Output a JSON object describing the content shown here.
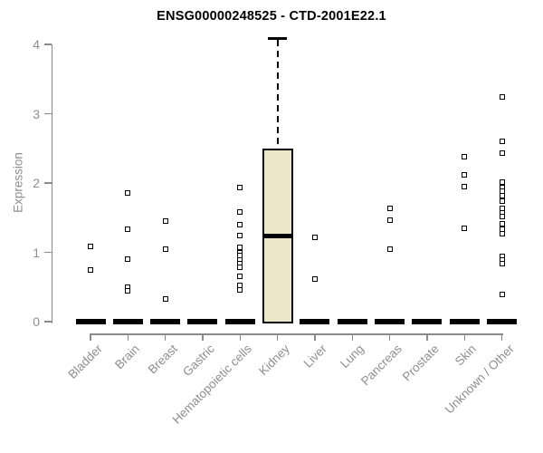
{
  "chart_data": {
    "type": "boxplot",
    "title": "ENSG00000248525 - CTD-2001E22.1",
    "ylabel": "Expression",
    "xlabel": "",
    "ylim": [
      0,
      4
    ],
    "yticks": [
      0,
      1,
      2,
      3,
      4
    ],
    "grid": "off",
    "legend": "none",
    "categories": [
      "Bladder",
      "Brain",
      "Breast",
      "Gastric",
      "Hematopoietic cells",
      "Kidney",
      "Liver",
      "Lung",
      "Pancreas",
      "Prostate",
      "Skin",
      "Unknown / Other"
    ],
    "boxes": [
      {
        "category": "Bladder",
        "q1": 0,
        "median": 0,
        "q3": 0,
        "whisker_low": 0,
        "whisker_high": 0,
        "outliers": [
          1.08,
          0.75
        ]
      },
      {
        "category": "Brain",
        "q1": 0,
        "median": 0,
        "q3": 0,
        "whisker_low": 0,
        "whisker_high": 0,
        "outliers": [
          1.85,
          1.33,
          0.9,
          0.5,
          0.44
        ]
      },
      {
        "category": "Breast",
        "q1": 0,
        "median": 0,
        "q3": 0,
        "whisker_low": 0,
        "whisker_high": 0,
        "outliers": [
          1.45,
          1.04,
          0.33
        ]
      },
      {
        "category": "Gastric",
        "q1": 0,
        "median": 0,
        "q3": 0,
        "whisker_low": 0,
        "whisker_high": 0,
        "outliers": []
      },
      {
        "category": "Hematopoietic cells",
        "q1": 0,
        "median": 0,
        "q3": 0,
        "whisker_low": 0,
        "whisker_high": 0,
        "outliers": [
          1.93,
          1.58,
          1.4,
          1.24,
          1.07,
          1.0,
          0.95,
          0.89,
          0.84,
          0.78,
          0.66,
          0.52,
          0.46
        ]
      },
      {
        "category": "Kidney",
        "q1": 0,
        "median": 1.23,
        "q3": 2.5,
        "whisker_low": 0,
        "whisker_high": 4.07,
        "outliers": []
      },
      {
        "category": "Liver",
        "q1": 0,
        "median": 0,
        "q3": 0,
        "whisker_low": 0,
        "whisker_high": 0,
        "outliers": [
          1.21,
          0.61
        ]
      },
      {
        "category": "Lung",
        "q1": 0,
        "median": 0,
        "q3": 0,
        "whisker_low": 0,
        "whisker_high": 0,
        "outliers": []
      },
      {
        "category": "Pancreas",
        "q1": 0,
        "median": 0,
        "q3": 0,
        "whisker_low": 0,
        "whisker_high": 0,
        "outliers": [
          1.64,
          1.47,
          1.04
        ]
      },
      {
        "category": "Prostate",
        "q1": 0,
        "median": 0,
        "q3": 0,
        "whisker_low": 0,
        "whisker_high": 0,
        "outliers": []
      },
      {
        "category": "Skin",
        "q1": 0,
        "median": 0,
        "q3": 0,
        "whisker_low": 0,
        "whisker_high": 0,
        "outliers": [
          2.38,
          2.12,
          1.95,
          1.35
        ]
      },
      {
        "category": "Unknown / Other",
        "q1": 0,
        "median": 0,
        "q3": 0,
        "whisker_low": 0,
        "whisker_high": 0,
        "outliers": [
          3.24,
          2.6,
          2.43,
          2.01,
          1.94,
          1.88,
          1.82,
          1.74,
          1.64,
          1.57,
          1.51,
          1.41,
          1.33,
          1.27,
          0.94,
          0.89,
          0.84,
          0.39
        ]
      }
    ],
    "colors": {
      "box_fill": "#ece7c8",
      "box_border": "#000000",
      "median": "#000000",
      "outlier": "#000000",
      "axis": "#8a8a8a",
      "tick_label": "#8e8e8e",
      "title": "#000000",
      "background": "#ffffff"
    }
  }
}
